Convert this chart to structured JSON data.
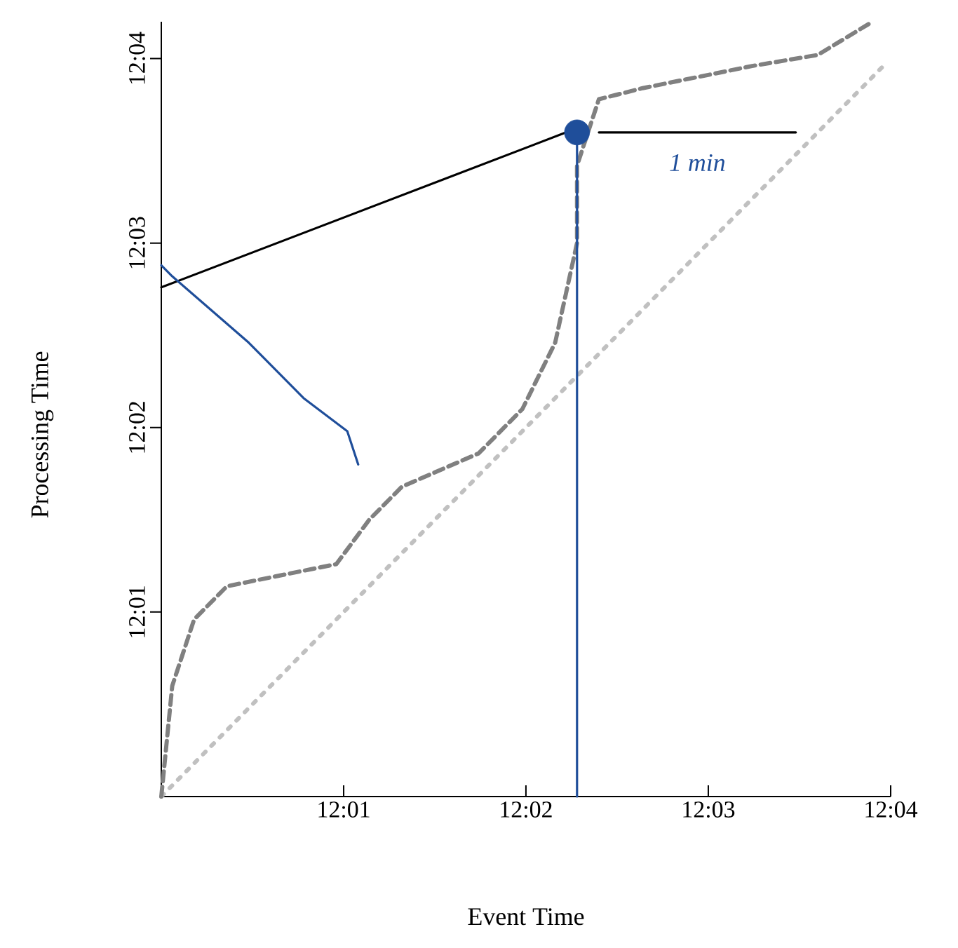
{
  "chart_data": {
    "type": "line",
    "xlabel": "Event Time",
    "ylabel": "Processing Time",
    "xlim": [
      12.0,
      12.06667
    ],
    "ylim": [
      12.0,
      12.07
    ],
    "xticks": [
      {
        "value": 12.01667,
        "label": "12:01"
      },
      {
        "value": 12.03333,
        "label": "12:02"
      },
      {
        "value": 12.05,
        "label": "12:03"
      },
      {
        "value": 12.06667,
        "label": "12:04"
      }
    ],
    "yticks": [
      {
        "value": 12.01667,
        "label": "12:01"
      },
      {
        "value": 12.03333,
        "label": "12:02"
      },
      {
        "value": 12.05,
        "label": "12:03"
      },
      {
        "value": 12.06667,
        "label": "12:04"
      }
    ],
    "series": [
      {
        "color": "#c0c0c0",
        "line_style": "dotted",
        "x": [
          12.0,
          12.066
        ],
        "values": [
          12.0,
          12.066
        ]
      },
      {
        "color": "#808080",
        "line_style": "dashed",
        "x": [
          12.0,
          12.001,
          12.003,
          12.006,
          12.011,
          12.016,
          12.019,
          12.022,
          12.029,
          12.033,
          12.036,
          12.038,
          12.038,
          12.04,
          12.044,
          12.049,
          12.054,
          12.06,
          12.065
        ],
        "values": [
          12.0,
          12.01,
          12.016,
          12.019,
          12.02,
          12.021,
          12.025,
          12.028,
          12.031,
          12.035,
          12.041,
          12.05,
          12.057,
          12.063,
          12.064,
          12.065,
          12.066,
          12.067,
          12.07
        ]
      },
      {
        "color": "#000000",
        "line_style": "solid",
        "x": [
          12.0,
          12.037
        ],
        "values": [
          12.046,
          12.06
        ]
      },
      {
        "color": "#000000",
        "line_style": "solid",
        "x": [
          12.04,
          12.058
        ],
        "values": [
          12.06,
          12.06
        ]
      },
      {
        "color": "#1f4e9a",
        "line_style": "solid",
        "x": [
          12.038,
          12.038
        ],
        "values": [
          12.0,
          12.06
        ]
      },
      {
        "color": "#1f4e9a",
        "line_style": "solid",
        "x": [
          12.0,
          12.001,
          12.008,
          12.013,
          12.017,
          12.018
        ],
        "values": [
          12.048,
          12.047,
          12.041,
          12.036,
          12.033,
          12.03
        ]
      },
      {
        "type": "scatter",
        "marker": "circle",
        "color": "#1f4e9a",
        "x": [
          12.038
        ],
        "values": [
          12.06
        ]
      }
    ],
    "annotations": [
      "1 min"
    ]
  }
}
